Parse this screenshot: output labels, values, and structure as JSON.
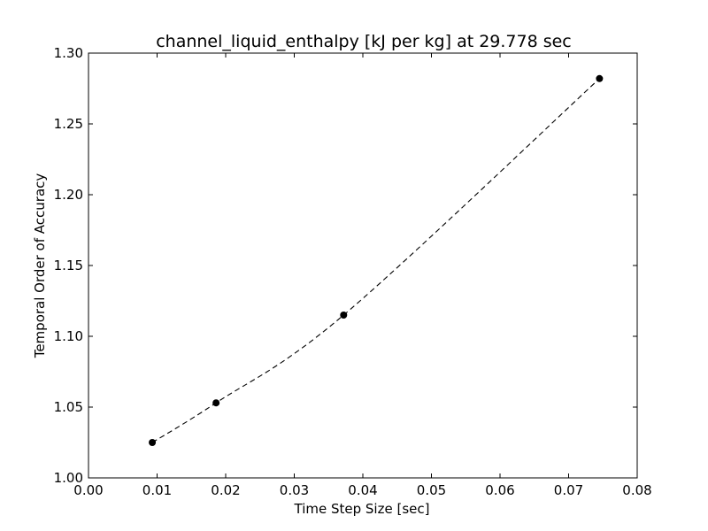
{
  "chart_data": {
    "type": "line",
    "title": "channel_liquid_enthalpy [kJ per kg] at 29.778 sec",
    "xlabel": "Time Step Size [sec]",
    "ylabel": "Temporal Order of Accuracy",
    "xlim": [
      0.0,
      0.08
    ],
    "ylim": [
      1.0,
      1.3
    ],
    "xticks": [
      0.0,
      0.01,
      0.02,
      0.03,
      0.04,
      0.05,
      0.06,
      0.07,
      0.08
    ],
    "yticks": [
      1.0,
      1.05,
      1.1,
      1.15,
      1.2,
      1.25,
      1.3
    ],
    "xtick_labels": [
      "0.00",
      "0.01",
      "0.02",
      "0.03",
      "0.04",
      "0.05",
      "0.06",
      "0.07",
      "0.08"
    ],
    "ytick_labels": [
      "1.00",
      "1.05",
      "1.10",
      "1.15",
      "1.20",
      "1.25",
      "1.30"
    ],
    "grid": false,
    "series": [
      {
        "x": [
          0.0093,
          0.0186,
          0.0372,
          0.0745
        ],
        "y": [
          1.025,
          1.053,
          1.115,
          1.282
        ],
        "color": "#000000",
        "line_style": "dashed",
        "marker": "circle"
      }
    ]
  }
}
